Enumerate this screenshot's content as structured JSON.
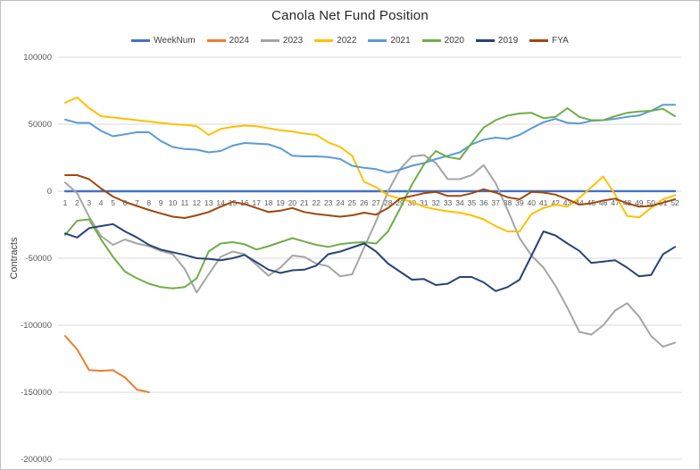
{
  "chart_data": {
    "type": "line",
    "title": "Canola Net Fund Position",
    "ylabel": "Contracts",
    "xlabel": "",
    "ylim": [
      -200000,
      100000
    ],
    "y_ticks": [
      100000,
      50000,
      0,
      -50000,
      -100000,
      -150000,
      -200000
    ],
    "grid": true,
    "legend_position": "top",
    "x_ticks": [
      1,
      2,
      3,
      4,
      5,
      6,
      7,
      8,
      9,
      10,
      11,
      12,
      13,
      14,
      15,
      16,
      17,
      18,
      19,
      20,
      21,
      22,
      23,
      24,
      25,
      26,
      27,
      28,
      29,
      30,
      31,
      32,
      33,
      34,
      35,
      36,
      37,
      38,
      39,
      40,
      41,
      42,
      43,
      44,
      45,
      46,
      47,
      48,
      49,
      50,
      51,
      52
    ],
    "series": [
      {
        "name": "WeekNum",
        "color": "#4472C4",
        "values": [
          1,
          2,
          3,
          4,
          5,
          6,
          7,
          8,
          9,
          10,
          11,
          12,
          13,
          14,
          15,
          16,
          17,
          18,
          19,
          20,
          21,
          22,
          23,
          24,
          25,
          26,
          27,
          28,
          29,
          30,
          31,
          32,
          33,
          34,
          35,
          36,
          37,
          38,
          39,
          40,
          41,
          42,
          43,
          44,
          45,
          46,
          47,
          48,
          49,
          50,
          51,
          52
        ]
      },
      {
        "name": "2024",
        "color": "#ED7D31",
        "values": [
          -108000,
          -118000,
          -133500,
          -134000,
          -133500,
          -139000,
          -148000,
          -150000
        ]
      },
      {
        "name": "2023",
        "color": "#A5A5A5",
        "values": [
          6500,
          -1500,
          -19000,
          -33500,
          -40000,
          -36000,
          -39000,
          -41000,
          -44500,
          -47000,
          -58000,
          -75500,
          -62000,
          -49000,
          -45000,
          -47000,
          -55000,
          -63000,
          -57000,
          -48000,
          -49000,
          -54000,
          -56000,
          -63500,
          -62000,
          -42000,
          -22500,
          0,
          16500,
          26000,
          27000,
          21000,
          9000,
          9000,
          12000,
          19500,
          6000,
          -14000,
          -35000,
          -48000,
          -57000,
          -70500,
          -87000,
          -105000,
          -107000,
          -100000,
          -89000,
          -83500,
          -93500,
          -108000,
          -116000,
          -113000
        ]
      },
      {
        "name": "2022",
        "color": "#FFC000",
        "values": [
          66000,
          70000,
          62000,
          56000,
          55000,
          54000,
          53000,
          52000,
          51000,
          50000,
          49500,
          48500,
          42000,
          46500,
          48000,
          49000,
          48500,
          47000,
          45500,
          44500,
          43000,
          42000,
          36500,
          33000,
          26500,
          7000,
          3000,
          -3000,
          -5500,
          -8000,
          -11500,
          -13500,
          -15000,
          -16000,
          -18000,
          -21000,
          -26000,
          -30000,
          -30000,
          -17000,
          -12500,
          -10000,
          -11500,
          -5000,
          3000,
          11000,
          -2500,
          -18500,
          -19500,
          -12500,
          -6000,
          -3000
        ]
      },
      {
        "name": "2021",
        "color": "#5B9BD5",
        "values": [
          53500,
          51000,
          51000,
          45000,
          41000,
          42500,
          44000,
          44000,
          37500,
          33000,
          31500,
          31000,
          29000,
          30000,
          34000,
          36000,
          35500,
          35000,
          32000,
          26500,
          26000,
          26000,
          25500,
          24000,
          19000,
          17500,
          16500,
          14000,
          16000,
          19000,
          21000,
          24000,
          26500,
          29000,
          35000,
          38500,
          40000,
          39000,
          42000,
          47000,
          51500,
          54000,
          51000,
          50500,
          52500,
          53000,
          54000,
          55500,
          56500,
          60000,
          64500,
          64500
        ]
      },
      {
        "name": "2020",
        "color": "#70AD47",
        "values": [
          -32500,
          -22000,
          -21000,
          -36000,
          -49000,
          -60000,
          -65000,
          -69000,
          -71500,
          -72500,
          -71500,
          -65000,
          -45000,
          -39000,
          -38000,
          -39500,
          -43500,
          -41000,
          -38000,
          -35000,
          -37500,
          -40000,
          -41500,
          -39500,
          -38500,
          -38000,
          -39000,
          -30000,
          -13000,
          5000,
          20000,
          30000,
          25500,
          24000,
          36000,
          47500,
          53000,
          56500,
          58000,
          58500,
          54500,
          55500,
          62000,
          55500,
          53000,
          53000,
          56000,
          58500,
          59500,
          60000,
          61500,
          56000
        ]
      },
      {
        "name": "2019",
        "color": "#264478",
        "values": [
          -31500,
          -34500,
          -27500,
          -26000,
          -24500,
          -30000,
          -34500,
          -40000,
          -43500,
          -45500,
          -47500,
          -50000,
          -50500,
          -51500,
          -50000,
          -47500,
          -53000,
          -58500,
          -61000,
          -59000,
          -58500,
          -55500,
          -47000,
          -45000,
          -42000,
          -39000,
          -45000,
          -54000,
          -60000,
          -66000,
          -65500,
          -70000,
          -69000,
          -64000,
          -64000,
          -68000,
          -74500,
          -71500,
          -66000,
          -48000,
          -30000,
          -33000,
          -39000,
          -44500,
          -53500,
          -52500,
          -51500,
          -57000,
          -63500,
          -62500,
          -47000,
          -41500
        ]
      },
      {
        "name": "FYA",
        "color": "#9E480E",
        "values": [
          12000,
          12000,
          9000,
          2000,
          -4000,
          -8000,
          -11000,
          -14000,
          -16500,
          -19000,
          -20000,
          -18000,
          -15500,
          -11500,
          -8000,
          -9500,
          -12500,
          -15500,
          -14500,
          -12500,
          -15500,
          -17000,
          -18000,
          -19000,
          -18000,
          -16000,
          -17500,
          -12500,
          -5500,
          -3500,
          -1500,
          -500,
          -3500,
          -3500,
          -1500,
          1500,
          -1000,
          -4500,
          -6000,
          -500,
          -1000,
          -2500,
          -6000,
          -10000,
          -9000,
          -7000,
          -5500,
          -9000,
          -11500,
          -11000,
          -8500,
          -6000
        ]
      }
    ]
  }
}
